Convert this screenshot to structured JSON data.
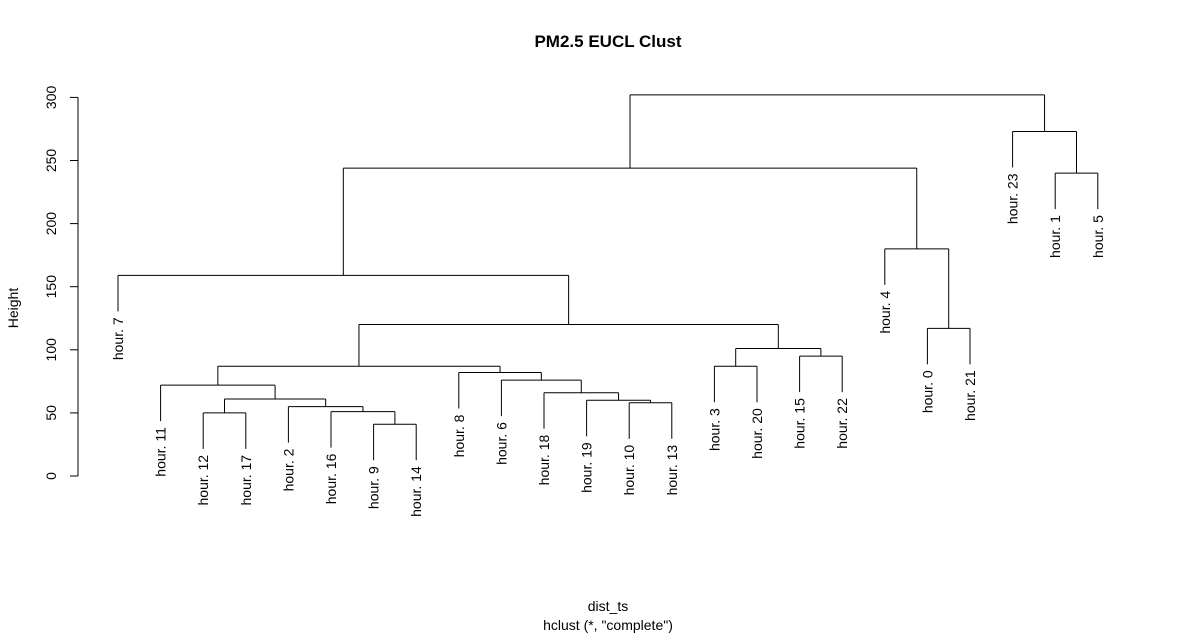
{
  "chart_data": {
    "type": "dendrogram",
    "title": "PM2.5 EUCL Clust",
    "xlabel": "dist_ts",
    "subtitle": "hclust (*, \"complete\")",
    "ylabel": "Height",
    "ylim": [
      0,
      310
    ],
    "yticks": [
      0,
      50,
      100,
      150,
      200,
      250,
      300
    ],
    "leaf_order": [
      "hour. 7",
      "hour. 11",
      "hour. 12",
      "hour. 17",
      "hour. 2",
      "hour. 16",
      "hour. 9",
      "hour. 14",
      "hour. 8",
      "hour. 6",
      "hour. 18",
      "hour. 19",
      "hour. 10",
      "hour. 13",
      "hour. 3",
      "hour. 20",
      "hour. 15",
      "hour. 22",
      "hour. 4",
      "hour. 0",
      "hour. 21",
      "hour. 23",
      "hour. 1",
      "hour. 5"
    ],
    "merges": [
      {
        "a": "hour. 12",
        "b": "hour. 17",
        "height": 50,
        "id": "A"
      },
      {
        "a": "hour. 9",
        "b": "hour. 14",
        "height": 41,
        "id": "B"
      },
      {
        "a": "hour. 16",
        "b": "B",
        "height": 51,
        "id": "C"
      },
      {
        "a": "hour. 2",
        "b": "C",
        "height": 55,
        "id": "D"
      },
      {
        "a": "A",
        "b": "D",
        "height": 61,
        "id": "E"
      },
      {
        "a": "hour. 11",
        "b": "E",
        "height": 72,
        "id": "F"
      },
      {
        "a": "hour. 10",
        "b": "hour. 13",
        "height": 58,
        "id": "G"
      },
      {
        "a": "hour. 19",
        "b": "G",
        "height": 60,
        "id": "H"
      },
      {
        "a": "hour. 18",
        "b": "H",
        "height": 66,
        "id": "I"
      },
      {
        "a": "hour. 6",
        "b": "I",
        "height": 76,
        "id": "J"
      },
      {
        "a": "hour. 8",
        "b": "J",
        "height": 82,
        "id": "K"
      },
      {
        "a": "F",
        "b": "K",
        "height": 87,
        "id": "L"
      },
      {
        "a": "hour. 3",
        "b": "hour. 20",
        "height": 87,
        "id": "M"
      },
      {
        "a": "hour. 15",
        "b": "hour. 22",
        "height": 95,
        "id": "N"
      },
      {
        "a": "M",
        "b": "N",
        "height": 101,
        "id": "O"
      },
      {
        "a": "L",
        "b": "O",
        "height": 120,
        "id": "P"
      },
      {
        "a": "hour. 7",
        "b": "P",
        "height": 159,
        "id": "Q"
      },
      {
        "a": "hour. 0",
        "b": "hour. 21",
        "height": 117,
        "id": "R"
      },
      {
        "a": "hour. 4",
        "b": "R",
        "height": 180,
        "id": "S"
      },
      {
        "a": "Q",
        "b": "S",
        "height": 244,
        "id": "T"
      },
      {
        "a": "hour. 1",
        "b": "hour. 5",
        "height": 240,
        "id": "U"
      },
      {
        "a": "hour. 23",
        "b": "U",
        "height": 273,
        "id": "V"
      },
      {
        "a": "T",
        "b": "V",
        "height": 302,
        "id": "W"
      }
    ]
  }
}
